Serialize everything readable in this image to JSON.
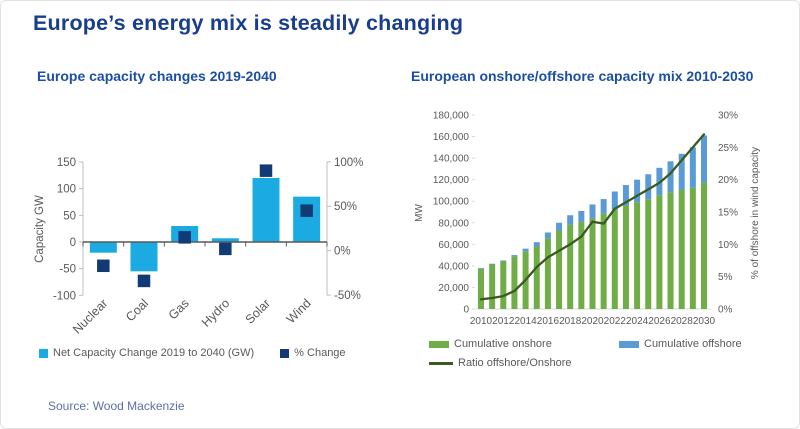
{
  "page": {
    "title": "Europe’s energy mix is steadily changing",
    "source": "Source: Wood Mackenzie"
  },
  "colors": {
    "title_blue": "#193D8F",
    "subtitle_blue": "#1C4FA3",
    "axis_text": "#595959",
    "source_text": "#5C6FA6",
    "light_blue_bar": "#1BAAE1",
    "navy_marker": "#123A75",
    "onshore_green": "#70AD47",
    "offshore_blue": "#5B9BD5",
    "ratio_line_green": "#3A5A21"
  },
  "chart_data": [
    {
      "name": "capacity-change",
      "type": "bar",
      "title": "Europe capacity changes 2019-2040",
      "categories": [
        "Nuclear",
        "Coal",
        "Gas",
        "Hydro",
        "Solar",
        "Wind"
      ],
      "series": [
        {
          "name": "Net Capacity Change 2019 to 2040 (GW)",
          "type": "bar",
          "axis": "left",
          "color": "#1BAAE1",
          "values": [
            -20,
            -55,
            30,
            7,
            120,
            85
          ]
        },
        {
          "name": "% Change",
          "type": "square-marker",
          "axis": "right",
          "color": "#123A75",
          "values": [
            -17,
            -34,
            15,
            2,
            90,
            45
          ]
        }
      ],
      "left_axis": {
        "label": "Capacity GW",
        "min": -100,
        "max": 150,
        "step": 50
      },
      "right_axis": {
        "label": "",
        "min": -50,
        "max": 100,
        "step": 50,
        "suffix": "%"
      },
      "legend_position": "bottom",
      "grid": false
    },
    {
      "name": "onshore-offshore-mix",
      "type": "stacked-bar-line",
      "title": "European onshore/offshore capacity mix 2010-2030",
      "x": [
        2010,
        2011,
        2012,
        2013,
        2014,
        2015,
        2016,
        2017,
        2018,
        2019,
        2020,
        2021,
        2022,
        2023,
        2024,
        2025,
        2026,
        2027,
        2028,
        2029,
        2030
      ],
      "x_tick_step": 2,
      "series": [
        {
          "name": "Cumulative onshore",
          "type": "bar-stack",
          "axis": "left",
          "color": "#70AD47",
          "values": [
            37400,
            41300,
            44100,
            48600,
            53500,
            58000,
            65300,
            72800,
            78300,
            80800,
            83900,
            88500,
            92100,
            96000,
            99000,
            101900,
            105500,
            108200,
            110900,
            112500,
            117500
          ]
        },
        {
          "name": "Cumulative offshore",
          "type": "bar-stack",
          "axis": "left",
          "color": "#5B9BD5",
          "values": [
            600,
            700,
            900,
            1400,
            2500,
            4000,
            5700,
            7200,
            8700,
            10200,
            13100,
            13500,
            16900,
            19000,
            21000,
            23100,
            25500,
            28800,
            33100,
            37500,
            43500
          ]
        },
        {
          "name": "Ratio offshore/Onshore",
          "type": "line",
          "axis": "right",
          "color": "#3A5A21",
          "values": [
            1.5,
            1.7,
            2.0,
            2.8,
            4.5,
            6.5,
            8.0,
            9.0,
            10.0,
            11.2,
            13.5,
            13.2,
            15.5,
            16.5,
            17.5,
            18.5,
            19.5,
            21.0,
            23.0,
            25.0,
            27.0
          ]
        }
      ],
      "left_axis": {
        "label": "MW",
        "min": 0,
        "max": 180000,
        "step": 20000
      },
      "right_axis": {
        "label": "% of offshore in wind capacity",
        "min": 0,
        "max": 30,
        "step": 5,
        "suffix": "%"
      },
      "legend_position": "bottom",
      "grid": false
    }
  ]
}
